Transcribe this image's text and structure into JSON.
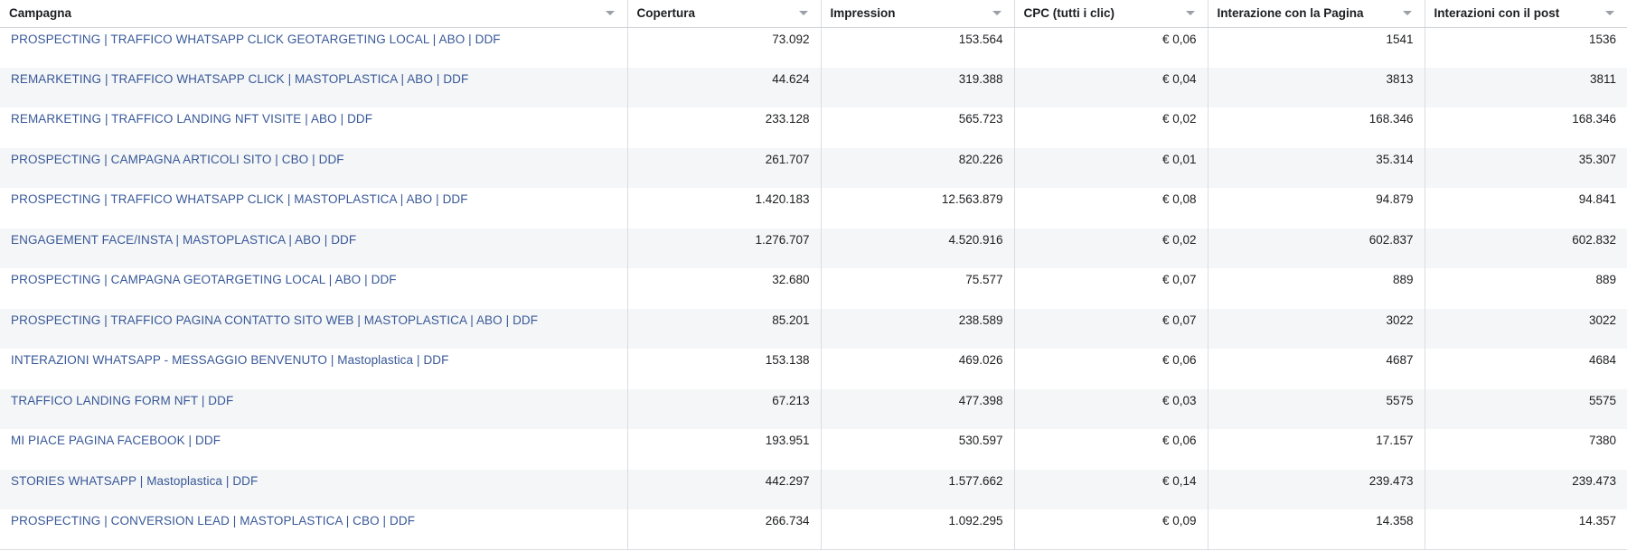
{
  "columns": [
    "Campagna",
    "Copertura",
    "Impression",
    "CPC (tutti i clic)",
    "Interazione con la Pagina",
    "Interazioni con il post"
  ],
  "rows": [
    {
      "campagna": "PROSPECTING | TRAFFICO WHATSAPP CLICK GEOTARGETING LOCAL | ABO | DDF",
      "copertura": "73.092",
      "impression": "153.564",
      "cpc": "€ 0,06",
      "interazione_pagina": "1541",
      "interazioni_post": "1536"
    },
    {
      "campagna": "REMARKETING | TRAFFICO WHATSAPP CLICK | MASTOPLASTICA | ABO | DDF",
      "copertura": "44.624",
      "impression": "319.388",
      "cpc": "€ 0,04",
      "interazione_pagina": "3813",
      "interazioni_post": "3811"
    },
    {
      "campagna": "REMARKETING | TRAFFICO LANDING NFT VISITE | ABO | DDF",
      "copertura": "233.128",
      "impression": "565.723",
      "cpc": "€ 0,02",
      "interazione_pagina": "168.346",
      "interazioni_post": "168.346"
    },
    {
      "campagna": "PROSPECTING | CAMPAGNA ARTICOLI SITO | CBO | DDF",
      "copertura": "261.707",
      "impression": "820.226",
      "cpc": "€ 0,01",
      "interazione_pagina": "35.314",
      "interazioni_post": "35.307"
    },
    {
      "campagna": "PROSPECTING | TRAFFICO WHATSAPP CLICK | MASTOPLASTICA | ABO | DDF",
      "copertura": "1.420.183",
      "impression": "12.563.879",
      "cpc": "€ 0,08",
      "interazione_pagina": "94.879",
      "interazioni_post": "94.841"
    },
    {
      "campagna": "ENGAGEMENT FACE/INSTA | MASTOPLASTICA | ABO | DDF",
      "copertura": "1.276.707",
      "impression": "4.520.916",
      "cpc": "€ 0,02",
      "interazione_pagina": "602.837",
      "interazioni_post": "602.832"
    },
    {
      "campagna": "PROSPECTING | CAMPAGNA GEOTARGETING LOCAL | ABO | DDF",
      "copertura": "32.680",
      "impression": "75.577",
      "cpc": "€ 0,07",
      "interazione_pagina": "889",
      "interazioni_post": "889"
    },
    {
      "campagna": "PROSPECTING | TRAFFICO PAGINA CONTATTO SITO WEB | MASTOPLASTICA | ABO | DDF",
      "copertura": "85.201",
      "impression": "238.589",
      "cpc": "€ 0,07",
      "interazione_pagina": "3022",
      "interazioni_post": "3022"
    },
    {
      "campagna": "INTERAZIONI WHATSAPP - MESSAGGIO BENVENUTO | Mastoplastica | DDF",
      "copertura": "153.138",
      "impression": "469.026",
      "cpc": "€ 0,06",
      "interazione_pagina": "4687",
      "interazioni_post": "4684"
    },
    {
      "campagna": "TRAFFICO LANDING FORM NFT | DDF",
      "copertura": "67.213",
      "impression": "477.398",
      "cpc": "€ 0,03",
      "interazione_pagina": "5575",
      "interazioni_post": "5575"
    },
    {
      "campagna": "MI PIACE PAGINA FACEBOOK | DDF",
      "copertura": "193.951",
      "impression": "530.597",
      "cpc": "€ 0,06",
      "interazione_pagina": "17.157",
      "interazioni_post": "7380"
    },
    {
      "campagna": "STORIES WHATSAPP | Mastoplastica | DDF",
      "copertura": "442.297",
      "impression": "1.577.662",
      "cpc": "€ 0,14",
      "interazione_pagina": "239.473",
      "interazioni_post": "239.473"
    },
    {
      "campagna": "PROSPECTING | CONVERSION LEAD | MASTOPLASTICA | CBO | DDF",
      "copertura": "266.734",
      "impression": "1.092.295",
      "cpc": "€ 0,09",
      "interazione_pagina": "14.358",
      "interazioni_post": "14.357"
    }
  ],
  "colors": {
    "link": "#385898",
    "text": "#1c1e21",
    "stripe": "#f5f6f7",
    "border": "#dadde1"
  },
  "icons": {
    "sort": "chevron-down-icon"
  }
}
